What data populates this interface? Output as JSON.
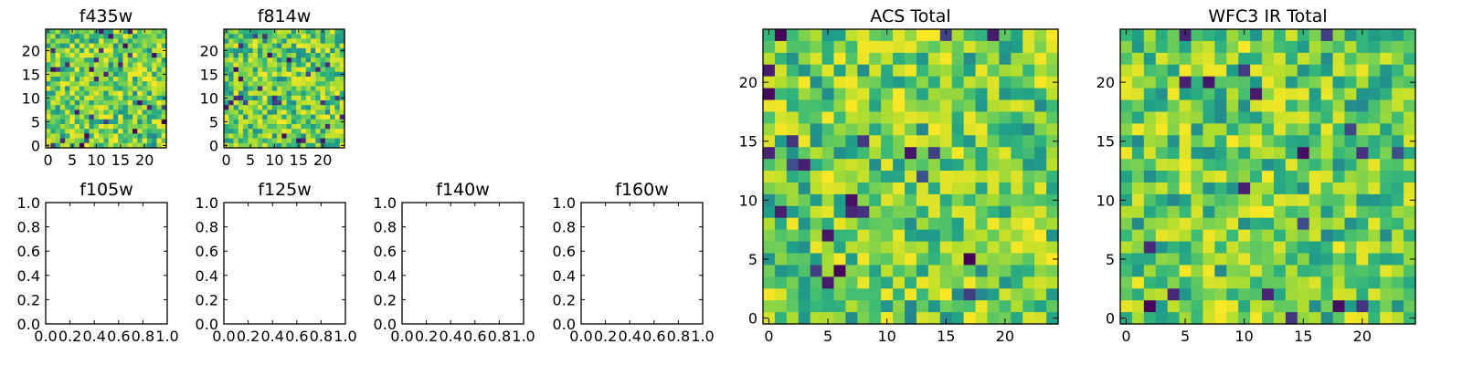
{
  "figure": {
    "colormap": "viridis",
    "colors": {
      "low": "#440154",
      "mid": "#21918c",
      "high": "#fde725",
      "frame": "#000000",
      "background": "#ffffff"
    }
  },
  "chart_data": [
    {
      "id": "f435w",
      "type": "heatmap",
      "title": "f435w",
      "grid_size": 25,
      "xlim": [
        -0.5,
        24.5
      ],
      "ylim": [
        -0.5,
        24.5
      ],
      "xticks": [
        "0",
        "5",
        "10",
        "15",
        "20"
      ],
      "yticks": [
        "0",
        "5",
        "10",
        "15",
        "20"
      ],
      "values_seed": 11,
      "has_image": true
    },
    {
      "id": "f814w",
      "type": "heatmap",
      "title": "f814w",
      "grid_size": 25,
      "xlim": [
        -0.5,
        24.5
      ],
      "ylim": [
        -0.5,
        24.5
      ],
      "xticks": [
        "0",
        "5",
        "10",
        "15",
        "20"
      ],
      "yticks": [
        "0",
        "5",
        "10",
        "15",
        "20"
      ],
      "values_seed": 23,
      "has_image": true
    },
    {
      "id": "f105w",
      "type": "heatmap",
      "title": "f105w",
      "xlim": [
        0,
        1
      ],
      "ylim": [
        0,
        1
      ],
      "xticks": [
        "0.0",
        "0.2",
        "0.4",
        "0.6",
        "0.8",
        "1.0"
      ],
      "yticks": [
        "0.0",
        "0.2",
        "0.4",
        "0.6",
        "0.8",
        "1.0"
      ],
      "has_image": false
    },
    {
      "id": "f125w",
      "type": "heatmap",
      "title": "f125w",
      "xlim": [
        0,
        1
      ],
      "ylim": [
        0,
        1
      ],
      "xticks": [
        "0.0",
        "0.2",
        "0.4",
        "0.6",
        "0.8",
        "1.0"
      ],
      "yticks": [
        "0.0",
        "0.2",
        "0.4",
        "0.6",
        "0.8",
        "1.0"
      ],
      "has_image": false
    },
    {
      "id": "f140w",
      "type": "heatmap",
      "title": "f140w",
      "xlim": [
        0,
        1
      ],
      "ylim": [
        0,
        1
      ],
      "xticks": [
        "0.0",
        "0.2",
        "0.4",
        "0.6",
        "0.8",
        "1.0"
      ],
      "yticks": [
        "0.0",
        "0.2",
        "0.4",
        "0.6",
        "0.8",
        "1.0"
      ],
      "has_image": false
    },
    {
      "id": "f160w",
      "type": "heatmap",
      "title": "f160w",
      "xlim": [
        0,
        1
      ],
      "ylim": [
        0,
        1
      ],
      "xticks": [
        "0.0",
        "0.2",
        "0.4",
        "0.6",
        "0.8",
        "1.0"
      ],
      "yticks": [
        "0.0",
        "0.2",
        "0.4",
        "0.6",
        "0.8",
        "1.0"
      ],
      "has_image": false
    },
    {
      "id": "acs_total",
      "type": "heatmap",
      "title": "ACS Total",
      "grid_size": 25,
      "xlim": [
        -0.5,
        24.5
      ],
      "ylim": [
        -0.5,
        24.5
      ],
      "xticks": [
        "0",
        "5",
        "10",
        "15",
        "20"
      ],
      "yticks": [
        "0",
        "5",
        "10",
        "15",
        "20"
      ],
      "values_seed": 37,
      "has_image": true
    },
    {
      "id": "wfc3_ir_total",
      "type": "heatmap",
      "title": "WFC3 IR Total",
      "grid_size": 25,
      "xlim": [
        -0.5,
        24.5
      ],
      "ylim": [
        -0.5,
        24.5
      ],
      "xticks": [
        "0",
        "5",
        "10",
        "15",
        "20"
      ],
      "yticks": [
        "0",
        "5",
        "10",
        "15",
        "20"
      ],
      "values_seed": 53,
      "has_image": true
    }
  ]
}
